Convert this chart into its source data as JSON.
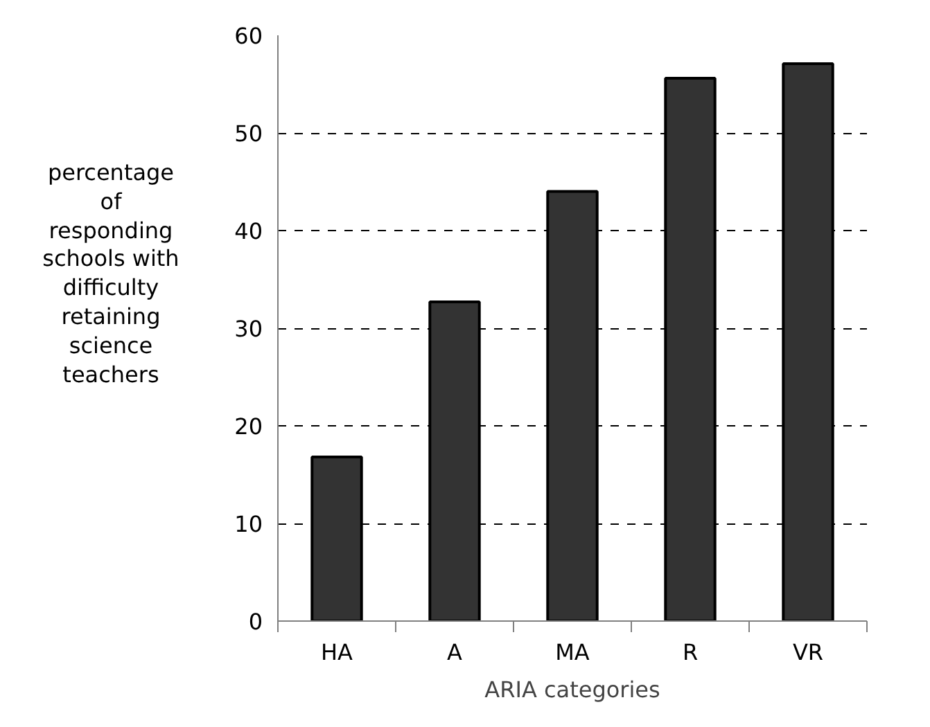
{
  "chart_data": {
    "type": "bar",
    "xlabel": "ARIA categories",
    "ylabel": "percentage of responding schools with difficulty retaining science teachers",
    "categories": [
      "HA",
      "A",
      "MA",
      "R",
      "VR"
    ],
    "values": [
      16.8,
      32.7,
      44.0,
      55.6,
      57.1
    ],
    "color": "#333333",
    "ylim": [
      0,
      60
    ],
    "yticks": [
      0,
      10,
      20,
      30,
      40,
      50,
      60
    ],
    "grid": "y"
  }
}
